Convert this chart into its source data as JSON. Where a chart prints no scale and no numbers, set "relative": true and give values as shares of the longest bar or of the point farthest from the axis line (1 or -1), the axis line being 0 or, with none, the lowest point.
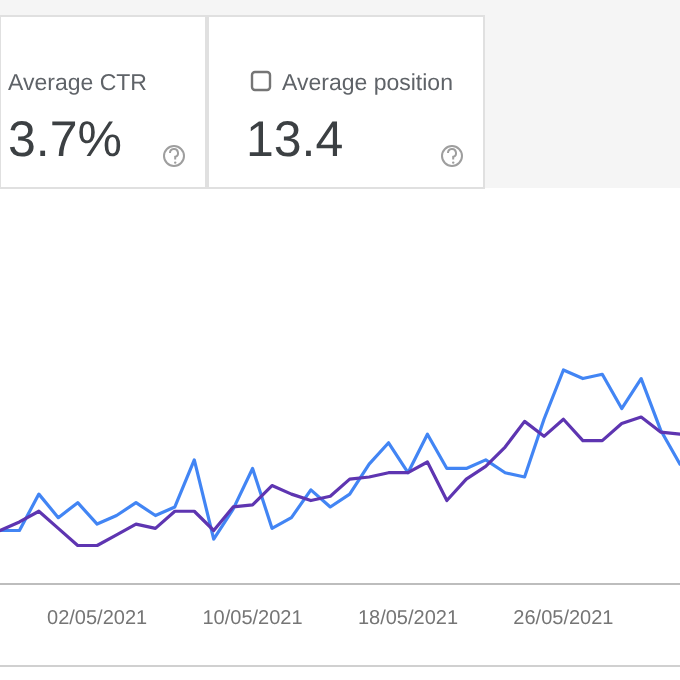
{
  "chart_data": [
    {
      "type": "other",
      "title": "Average CTR",
      "annotations": [
        "3.7%"
      ]
    },
    {
      "type": "other",
      "title": "Average position",
      "annotations": [
        "13.4"
      ]
    },
    {
      "type": "line",
      "relative": true,
      "x": [
        "2021-04-27",
        "2021-04-28",
        "2021-04-29",
        "2021-04-30",
        "2021-05-01",
        "2021-05-02",
        "2021-05-03",
        "2021-05-04",
        "2021-05-05",
        "2021-05-06",
        "2021-05-07",
        "2021-05-08",
        "2021-05-09",
        "2021-05-10",
        "2021-05-11",
        "2021-05-12",
        "2021-05-13",
        "2021-05-14",
        "2021-05-15",
        "2021-05-16",
        "2021-05-17",
        "2021-05-18",
        "2021-05-19",
        "2021-05-20",
        "2021-05-21",
        "2021-05-22",
        "2021-05-23",
        "2021-05-24",
        "2021-05-25",
        "2021-05-26",
        "2021-05-27",
        "2021-05-28",
        "2021-05-29",
        "2021-05-30",
        "2021-05-31",
        "2021-06-01"
      ],
      "xlim": [
        "2021-04-27",
        "2021-06-01"
      ],
      "xticks": [
        {
          "value": "2021-05-02",
          "label": "02/05/2021"
        },
        {
          "value": "2021-05-10",
          "label": "10/05/2021"
        },
        {
          "value": "2021-05-18",
          "label": "18/05/2021"
        },
        {
          "value": "2021-05-26",
          "label": "26/05/2021"
        }
      ],
      "series": [
        {
          "color": "#4285f4",
          "values": [
            0.25,
            0.25,
            0.42,
            0.31,
            0.38,
            0.28,
            0.32,
            0.38,
            0.32,
            0.36,
            0.58,
            0.21,
            0.35,
            0.54,
            0.26,
            0.31,
            0.44,
            0.36,
            0.42,
            0.56,
            0.66,
            0.52,
            0.7,
            0.54,
            0.54,
            0.58,
            0.52,
            0.5,
            0.77,
            1,
            0.96,
            0.98,
            0.82,
            0.96,
            0.72,
            0.56
          ]
        },
        {
          "color": "#5e35b1",
          "values": [
            0.25,
            0.29,
            0.34,
            0.26,
            0.18,
            0.18,
            0.23,
            0.28,
            0.26,
            0.34,
            0.34,
            0.25,
            0.36,
            0.37,
            0.46,
            0.42,
            0.39,
            0.41,
            0.49,
            0.5,
            0.52,
            0.52,
            0.57,
            0.39,
            0.49,
            0.55,
            0.64,
            0.76,
            0.69,
            0.77,
            0.67,
            0.67,
            0.75,
            0.78,
            0.71,
            0.7
          ]
        }
      ]
    }
  ]
}
